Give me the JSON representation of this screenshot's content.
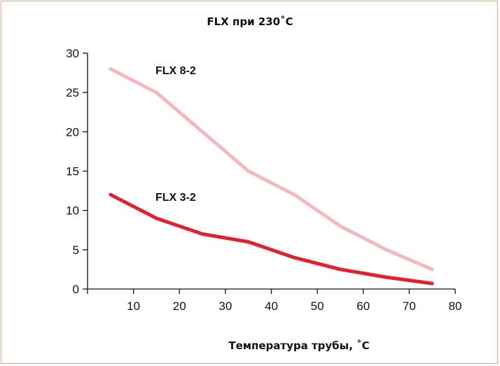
{
  "chart_data": {
    "type": "line",
    "title": "FLX при 230˚C",
    "xlabel": "Температура трубы, ˚C",
    "ylabel": "",
    "xlim": [
      0,
      80
    ],
    "ylim": [
      0,
      30
    ],
    "x_ticks": [
      10,
      20,
      30,
      40,
      50,
      60,
      70,
      80
    ],
    "y_ticks": [
      0,
      5,
      10,
      15,
      20,
      25,
      30
    ],
    "grid": false,
    "legend": "inline labels",
    "series": [
      {
        "name": "FLX 8-2",
        "color": "#f6b8bc",
        "x": [
          5,
          15,
          25,
          35,
          45,
          55,
          65,
          75
        ],
        "y": [
          28,
          25,
          20,
          15,
          12,
          8,
          5,
          2.5
        ]
      },
      {
        "name": "FLX 3-2",
        "color": "#e3202f",
        "x": [
          5,
          15,
          25,
          35,
          45,
          55,
          65,
          75
        ],
        "y": [
          12,
          9,
          7,
          6,
          4,
          2.5,
          1.5,
          0.7
        ]
      }
    ]
  }
}
